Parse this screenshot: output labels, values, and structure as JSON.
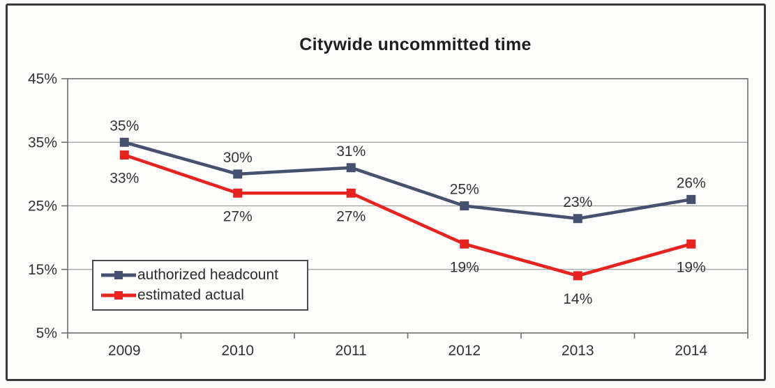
{
  "chart_data": {
    "type": "line",
    "title": "Citywide uncommitted time",
    "categories": [
      "2009",
      "2010",
      "2011",
      "2012",
      "2013",
      "2014"
    ],
    "series": [
      {
        "name": "authorized headcount",
        "color": "#46516f",
        "values": [
          35,
          30,
          31,
          25,
          23,
          26
        ],
        "point_labels": [
          "35%",
          "30%",
          "31%",
          "25%",
          "23%",
          "26%"
        ],
        "label_position": "above"
      },
      {
        "name": "estimated actual",
        "color": "#e6231e",
        "values": [
          33,
          27,
          27,
          19,
          14,
          19
        ],
        "point_labels": [
          "33%",
          "27%",
          "27%",
          "19%",
          "14%",
          "19%"
        ],
        "label_position": "below"
      }
    ],
    "y_ticks": [
      {
        "label": "45%",
        "value": 45
      },
      {
        "label": "35%",
        "value": 35
      },
      {
        "label": "25%",
        "value": 25
      },
      {
        "label": "15%",
        "value": 15
      },
      {
        "label": "5%",
        "value": 5
      }
    ],
    "ylim": [
      5,
      45
    ],
    "grid": true,
    "legend_position": "inside-bottom-left",
    "colors": {
      "grid_line": "#9e9e9e",
      "axis_frame": "#6d6d6d",
      "tick_text": "#333333",
      "data_label_text": "#333333"
    }
  }
}
